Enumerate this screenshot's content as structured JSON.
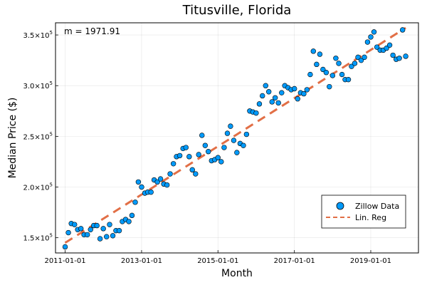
{
  "chart_data": {
    "type": "scatter",
    "title": "Titusville, Florida",
    "xlabel": "Month",
    "ylabel": "Median Price ($)",
    "annotation": "m = 1971.91",
    "grid": true,
    "legend_position": "bottom-right",
    "xlim": [
      "2010-10-01",
      "2020-04-01"
    ],
    "ylim": [
      135000,
      362000
    ],
    "x_ticks": [
      "2011-01-01",
      "2013-01-01",
      "2015-01-01",
      "2017-01-01",
      "2019-01-01"
    ],
    "y_ticks": [
      150000,
      200000,
      250000,
      300000,
      350000
    ],
    "y_tick_labels": [
      {
        "base": "1.5×10",
        "exp": "5"
      },
      {
        "base": "2.0×10",
        "exp": "5"
      },
      {
        "base": "2.5×10",
        "exp": "5"
      },
      {
        "base": "3.0×10",
        "exp": "5"
      },
      {
        "base": "3.5×10",
        "exp": "5"
      }
    ],
    "colors": {
      "data": "#009AFA",
      "regression": "#E26F46"
    },
    "series": [
      {
        "name": "Zillow Data",
        "kind": "scatter",
        "x": [
          "2011-01-01",
          "2011-02-01",
          "2011-03-01",
          "2011-04-01",
          "2011-05-01",
          "2011-06-01",
          "2011-07-01",
          "2011-08-01",
          "2011-09-01",
          "2011-10-01",
          "2011-11-01",
          "2011-12-01",
          "2012-01-01",
          "2012-02-01",
          "2012-03-01",
          "2012-04-01",
          "2012-05-01",
          "2012-06-01",
          "2012-07-01",
          "2012-08-01",
          "2012-09-01",
          "2012-10-01",
          "2012-11-01",
          "2012-12-01",
          "2013-01-01",
          "2013-02-01",
          "2013-03-01",
          "2013-04-01",
          "2013-05-01",
          "2013-06-01",
          "2013-07-01",
          "2013-08-01",
          "2013-09-01",
          "2013-10-01",
          "2013-11-01",
          "2013-12-01",
          "2014-01-01",
          "2014-02-01",
          "2014-03-01",
          "2014-04-01",
          "2014-05-01",
          "2014-06-01",
          "2014-07-01",
          "2014-08-01",
          "2014-09-01",
          "2014-10-01",
          "2014-11-01",
          "2014-12-01",
          "2015-01-01",
          "2015-02-01",
          "2015-03-01",
          "2015-04-01",
          "2015-05-01",
          "2015-06-01",
          "2015-07-01",
          "2015-08-01",
          "2015-09-01",
          "2015-10-01",
          "2015-11-01",
          "2015-12-01",
          "2016-01-01",
          "2016-02-01",
          "2016-03-01",
          "2016-04-01",
          "2016-05-01",
          "2016-06-01",
          "2016-07-01",
          "2016-08-01",
          "2016-09-01",
          "2016-10-01",
          "2016-11-01",
          "2016-12-01",
          "2017-01-01",
          "2017-02-01",
          "2017-03-01",
          "2017-04-01",
          "2017-05-01",
          "2017-06-01",
          "2017-07-01",
          "2017-08-01",
          "2017-09-01",
          "2017-10-01",
          "2017-11-01",
          "2017-12-01",
          "2018-01-01",
          "2018-02-01",
          "2018-03-01",
          "2018-04-01",
          "2018-05-01",
          "2018-06-01",
          "2018-07-01",
          "2018-08-01",
          "2018-09-01",
          "2018-10-01",
          "2018-11-01",
          "2018-12-01",
          "2019-01-01",
          "2019-02-01",
          "2019-03-01",
          "2019-04-01",
          "2019-05-01",
          "2019-06-01",
          "2019-07-01",
          "2019-08-01",
          "2019-09-01",
          "2019-10-01",
          "2019-11-01",
          "2019-12-01"
        ],
        "y": [
          141000,
          155000,
          164000,
          163000,
          158000,
          159000,
          153000,
          153000,
          158000,
          162000,
          162000,
          149000,
          159000,
          151000,
          163000,
          152000,
          157000,
          157000,
          166000,
          168000,
          166000,
          172000,
          185000,
          205000,
          200000,
          194000,
          195000,
          195000,
          207000,
          205000,
          208000,
          203000,
          202000,
          213000,
          223000,
          230000,
          231000,
          238000,
          239000,
          230000,
          217000,
          213000,
          232000,
          251000,
          241000,
          235000,
          226000,
          227000,
          229000,
          225000,
          239000,
          253000,
          260000,
          246000,
          234000,
          243000,
          241000,
          252000,
          275000,
          274000,
          273000,
          282000,
          290000,
          300000,
          294000,
          284000,
          288000,
          283000,
          293000,
          300000,
          298000,
          296000,
          297000,
          287000,
          293000,
          292000,
          296000,
          311000,
          334000,
          321000,
          331000,
          316000,
          313000,
          299000,
          310000,
          327000,
          322000,
          311000,
          306000,
          306000,
          319000,
          322000,
          328000,
          325000,
          328000,
          343000,
          348000,
          353000,
          338000,
          335000,
          335000,
          337000,
          340000,
          330000,
          326000,
          327000,
          355000,
          329000
        ]
      },
      {
        "name": "Lin. Reg",
        "kind": "line",
        "x": [
          "2011-01-01",
          "2019-12-01"
        ],
        "y": [
          145000,
          357000
        ]
      }
    ]
  }
}
